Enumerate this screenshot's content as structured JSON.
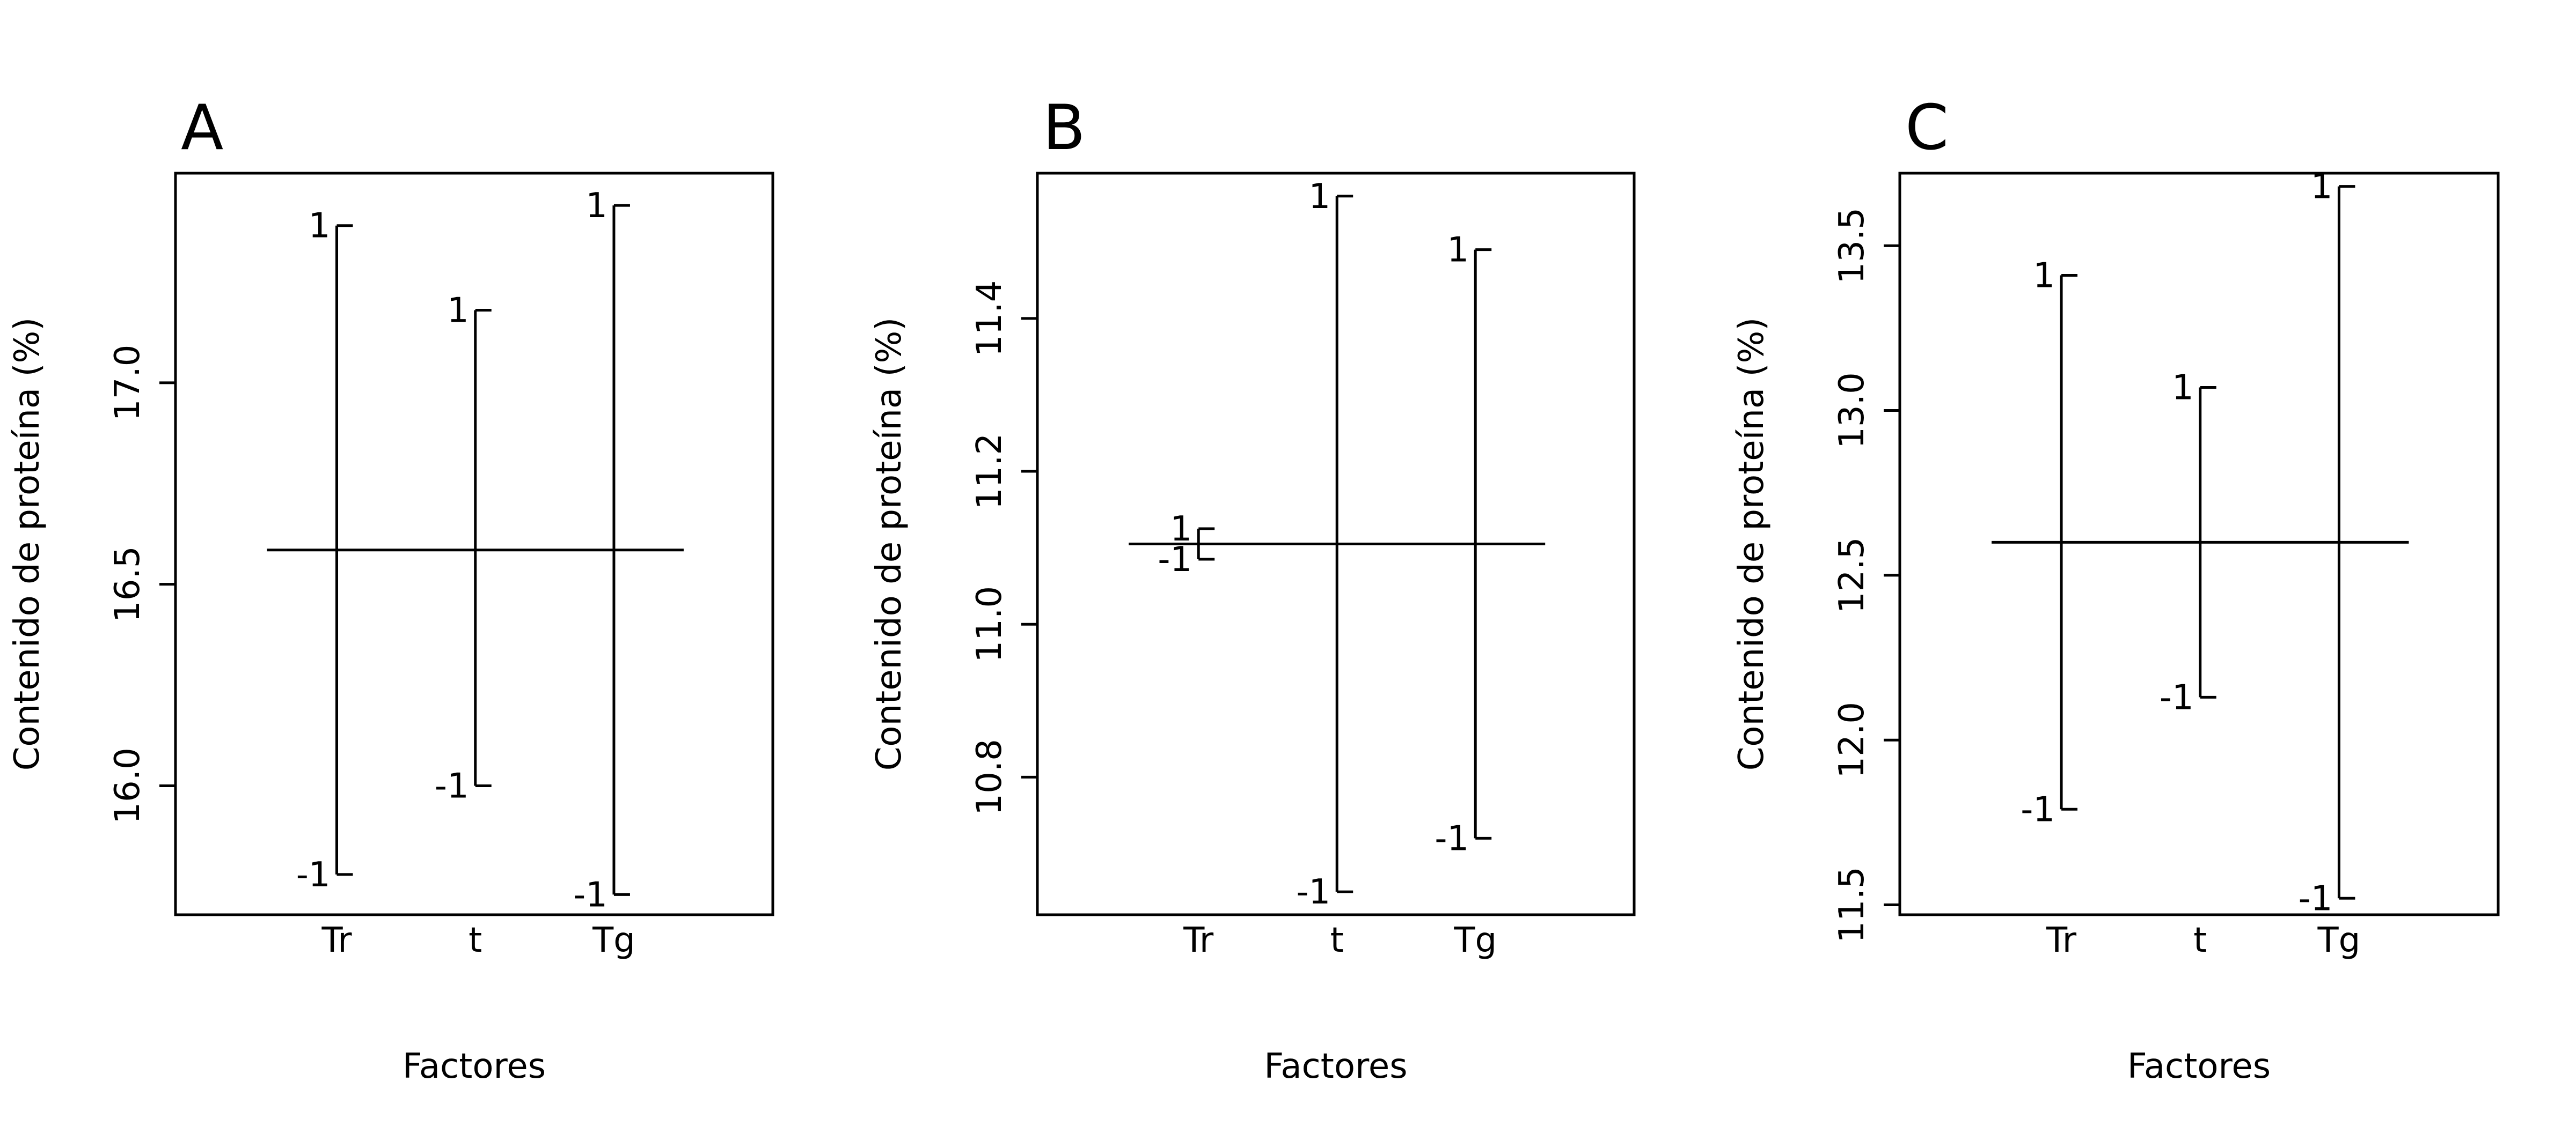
{
  "chart_data": [
    {
      "type": "main-effects",
      "panel_label": "A",
      "xlabel": "Factores",
      "ylabel": "Contenido de proteína (%)",
      "categories": [
        "Tr",
        "t",
        "Tg"
      ],
      "grand_mean": 16.585,
      "ylim": [
        15.68,
        17.52
      ],
      "yticks": [
        16.0,
        16.5,
        17.0
      ],
      "ytick_labels": [
        "16.0",
        "16.5",
        "17.0"
      ],
      "low_label": "-1",
      "high_label": "1",
      "effects": [
        {
          "factor": "Tr",
          "low": 15.78,
          "high": 17.39
        },
        {
          "factor": "t",
          "low": 16.0,
          "high": 17.18
        },
        {
          "factor": "Tg",
          "low": 15.73,
          "high": 17.44
        }
      ]
    },
    {
      "type": "main-effects",
      "panel_label": "B",
      "xlabel": "Factores",
      "ylabel": "Contenido de proteína (%)",
      "categories": [
        "Tr",
        "t",
        "Tg"
      ],
      "grand_mean": 11.105,
      "ylim": [
        10.62,
        11.59
      ],
      "yticks": [
        10.8,
        11.0,
        11.2,
        11.4
      ],
      "ytick_labels": [
        "10.8",
        "11.0",
        "11.2",
        "11.4"
      ],
      "low_label": "-1",
      "high_label": "1",
      "effects": [
        {
          "factor": "Tr",
          "low": 11.085,
          "high": 11.125
        },
        {
          "factor": "t",
          "low": 10.65,
          "high": 11.56
        },
        {
          "factor": "Tg",
          "low": 10.72,
          "high": 11.49
        }
      ]
    },
    {
      "type": "main-effects",
      "panel_label": "C",
      "xlabel": "Factores",
      "ylabel": "Contenido de proteína (%)",
      "categories": [
        "Tr",
        "t",
        "Tg"
      ],
      "grand_mean": 12.6,
      "ylim": [
        11.47,
        13.72
      ],
      "yticks": [
        11.5,
        12.0,
        12.5,
        13.0,
        13.5
      ],
      "ytick_labels": [
        "11.5",
        "12.0",
        "12.5",
        "13.0",
        "13.5"
      ],
      "low_label": "-1",
      "high_label": "1",
      "effects": [
        {
          "factor": "Tr",
          "low": 11.79,
          "high": 13.41
        },
        {
          "factor": "t",
          "low": 12.13,
          "high": 13.07
        },
        {
          "factor": "Tg",
          "low": 11.52,
          "high": 13.68
        }
      ]
    }
  ]
}
